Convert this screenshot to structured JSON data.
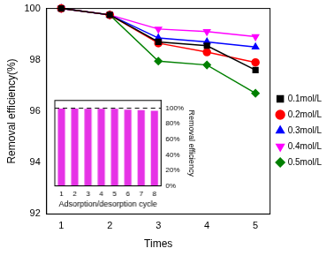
{
  "chart_data": [
    {
      "type": "line",
      "x_label": "Times",
      "y_label": "Removal efficiency(%)",
      "x": [
        1,
        2,
        3,
        4,
        5
      ],
      "xlim": [
        0.7,
        5.3
      ],
      "xticks": [
        1,
        2,
        3,
        4,
        5
      ],
      "ylim": [
        92,
        100
      ],
      "yticks": [
        92,
        94,
        96,
        98,
        100
      ],
      "grid": false,
      "legend": "right",
      "series": [
        {
          "name": "0.1mol/L",
          "color": "#000000",
          "marker": "square",
          "values": [
            100,
            99.75,
            98.7,
            98.55,
            97.6
          ]
        },
        {
          "name": "0.2mol/L",
          "color": "#ff0000",
          "marker": "circle",
          "values": [
            100,
            99.75,
            98.65,
            98.3,
            97.9
          ]
        },
        {
          "name": "0.3mol/L",
          "color": "#0000ff",
          "marker": "triangle-up",
          "values": [
            100,
            99.75,
            98.85,
            98.7,
            98.5
          ]
        },
        {
          "name": "0.4mol/L",
          "color": "#ff00ff",
          "marker": "triangle-down",
          "values": [
            100,
            99.75,
            99.2,
            99.1,
            98.9
          ]
        },
        {
          "name": "0.5mol/L",
          "color": "#008000",
          "marker": "diamond",
          "values": [
            100,
            99.75,
            97.95,
            97.8,
            96.7
          ]
        }
      ]
    },
    {
      "type": "bar",
      "x_label": "Adsorption/desorption cycle",
      "y_label": "Removal efficiency",
      "categories": [
        "1",
        "2",
        "3",
        "4",
        "5",
        "6",
        "7",
        "8"
      ],
      "values": [
        99.6,
        99.6,
        99.4,
        99.4,
        99.2,
        98.0,
        97.5,
        96.8
      ],
      "color": "#e633e6",
      "ylim": [
        0,
        110
      ],
      "yticks": [
        {
          "value": 0,
          "label": "0%"
        },
        {
          "value": 20,
          "label": "20%"
        },
        {
          "value": 40,
          "label": "40%"
        },
        {
          "value": 60,
          "label": "60%"
        },
        {
          "value": 80,
          "label": "80%"
        },
        {
          "value": 100,
          "label": "100%"
        }
      ],
      "reference_line": {
        "value": 100,
        "line_style": "dashed"
      },
      "grid": false
    }
  ]
}
